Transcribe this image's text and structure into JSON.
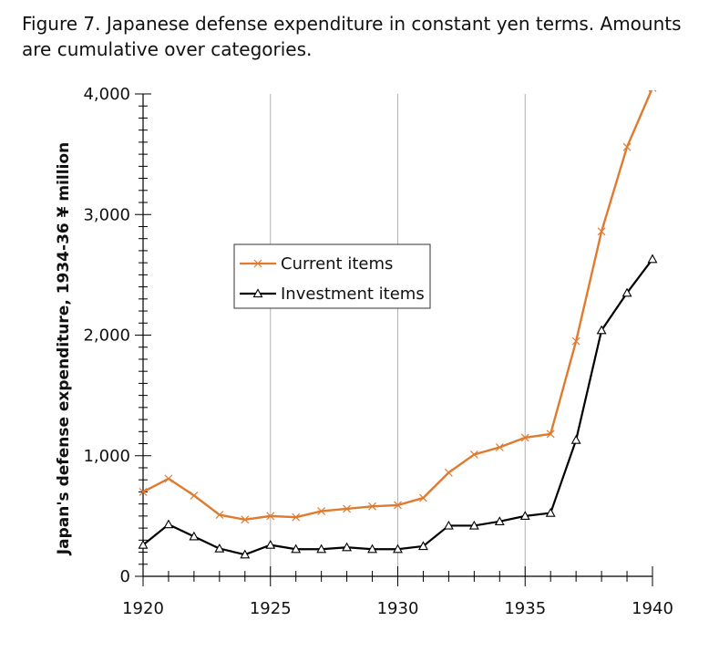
{
  "figure": {
    "caption": "Figure 7. Japanese  defense expenditure in constant yen terms. Amounts are cumulative over categories."
  },
  "chart_data": {
    "type": "line",
    "ylabel": "Japan's defense expenditure, 1934-36 ¥ million",
    "xlabel": "",
    "xlim": [
      1920,
      1940
    ],
    "ylim": [
      0,
      4000
    ],
    "x_ticks": [
      1920,
      1925,
      1930,
      1935,
      1940
    ],
    "x_tick_labels": [
      "1920",
      "1925",
      "1930",
      "1935",
      "1940"
    ],
    "y_ticks": [
      0,
      1000,
      2000,
      3000,
      4000
    ],
    "y_tick_labels": [
      "0",
      "1,000",
      "2,000",
      "3,000",
      "4,000"
    ],
    "vertical_gridlines": [
      1925,
      1930,
      1935
    ],
    "legend_position": "center-left",
    "x": [
      1920,
      1921,
      1922,
      1923,
      1924,
      1925,
      1926,
      1927,
      1928,
      1929,
      1930,
      1931,
      1932,
      1933,
      1934,
      1935,
      1936,
      1937,
      1938,
      1939,
      1940
    ],
    "series": [
      {
        "name": "Current items",
        "color": "#e07a2f",
        "marker": "x",
        "values": [
          700,
          810,
          670,
          510,
          470,
          500,
          490,
          540,
          560,
          580,
          590,
          650,
          860,
          1010,
          1070,
          1150,
          1180,
          1950,
          2860,
          3560,
          4050
        ]
      },
      {
        "name": "Investment items",
        "color": "#000000",
        "marker": "triangle",
        "values": [
          260,
          430,
          330,
          230,
          180,
          260,
          225,
          225,
          240,
          225,
          225,
          250,
          420,
          420,
          455,
          500,
          525,
          1130,
          2040,
          2350,
          2630
        ]
      }
    ]
  }
}
